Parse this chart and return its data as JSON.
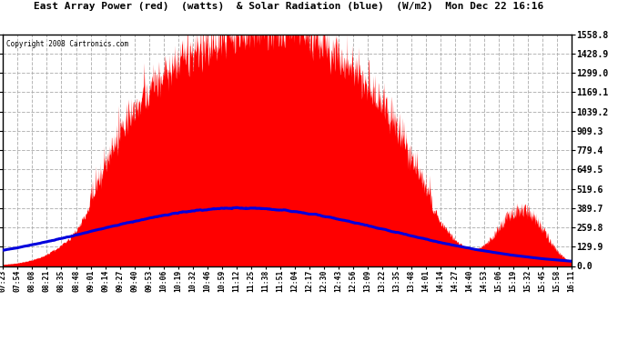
{
  "title": "East Array Power (red)  (watts)  & Solar Radiation (blue)  (W/m2)  Mon Dec 22 16:16",
  "copyright": "Copyright 2008 Cartronics.com",
  "bg_color": "#ffffff",
  "plot_bg_color": "#ffffff",
  "grid_color": "#aaaaaa",
  "red_color": "#ff0000",
  "blue_color": "#0000dd",
  "ymin": 0.0,
  "ymax": 1558.8,
  "yticks": [
    0.0,
    129.9,
    259.8,
    389.7,
    519.6,
    649.5,
    779.4,
    909.3,
    1039.2,
    1169.1,
    1299.0,
    1428.9,
    1558.8
  ],
  "x_labels": [
    "07:23",
    "07:54",
    "08:08",
    "08:21",
    "08:35",
    "08:48",
    "09:01",
    "09:14",
    "09:27",
    "09:40",
    "09:53",
    "10:06",
    "10:19",
    "10:32",
    "10:46",
    "10:59",
    "11:12",
    "11:25",
    "11:38",
    "11:51",
    "12:04",
    "12:17",
    "12:30",
    "12:43",
    "12:56",
    "13:09",
    "13:22",
    "13:35",
    "13:48",
    "14:01",
    "14:14",
    "14:27",
    "14:40",
    "14:53",
    "15:06",
    "15:19",
    "15:32",
    "15:45",
    "15:58",
    "16:11"
  ],
  "n_points": 2000,
  "power_peak": 1530,
  "radiation_peak": 390
}
